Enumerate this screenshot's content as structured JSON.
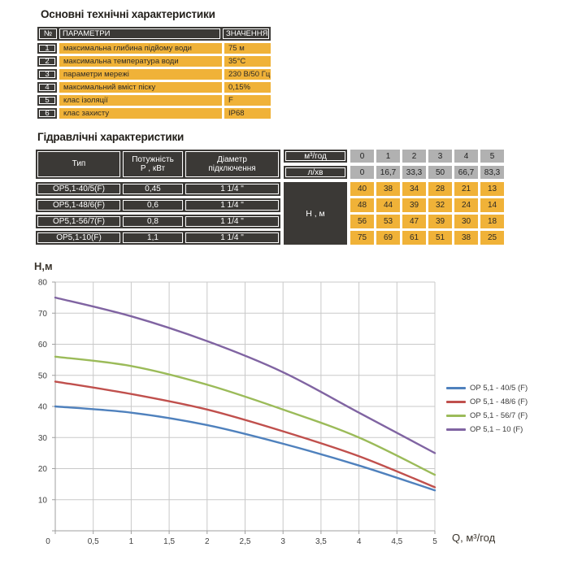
{
  "colors": {
    "dark": "#3b3936",
    "yellow": "#f0b238",
    "gray": "#b1b1b1",
    "series_blue": "#4f81bd",
    "series_red": "#c0504d",
    "series_green": "#9bbb59",
    "series_purple": "#8064a2"
  },
  "tech_table": {
    "title": "Основні технічні характеристики",
    "headers": {
      "num": "№",
      "param": "ПАРАМЕТРИ",
      "value": "ЗНАЧЕННЯ"
    },
    "rows": [
      {
        "num": "1",
        "param": "максимальна глибина підйому води",
        "value": "75 м"
      },
      {
        "num": "2",
        "param": "максимальна температура води",
        "value": "35°С"
      },
      {
        "num": "3",
        "param": "параметри мережі",
        "value": "230 В/50 Гц"
      },
      {
        "num": "4",
        "param": "максимальний вміст піску",
        "value": "0,15%"
      },
      {
        "num": "5",
        "param": "клас ізоляції",
        "value": "F"
      },
      {
        "num": "6",
        "param": "клас захисту",
        "value": "IP68"
      }
    ]
  },
  "hydraulic_table": {
    "title": "Гідравлічні характеристики",
    "col_headers": {
      "type": "Тип",
      "power": "Потужність\nР , кВт",
      "diameter": "Діаметр\nпідключення"
    },
    "flow_m3": {
      "label": "м³/год",
      "values": [
        "0",
        "1",
        "2",
        "3",
        "4",
        "5"
      ]
    },
    "flow_lmin": {
      "label": "л/хв",
      "values": [
        "0",
        "16,7",
        "33,3",
        "50",
        "66,7",
        "83,3"
      ]
    },
    "head_label": "Н , м",
    "rows": [
      {
        "type": "OP5,1-40/5(F)",
        "power": "0,45",
        "diameter": "1 1/4 \"",
        "heads": [
          "40",
          "38",
          "34",
          "28",
          "21",
          "13"
        ]
      },
      {
        "type": "OP5,1-48/6(F)",
        "power": "0,6",
        "diameter": "1 1/4 \"",
        "heads": [
          "48",
          "44",
          "39",
          "32",
          "24",
          "14"
        ]
      },
      {
        "type": "OP5,1-56/7(F)",
        "power": "0,8",
        "diameter": "1 1/4 \"",
        "heads": [
          "56",
          "53",
          "47",
          "39",
          "30",
          "18"
        ]
      },
      {
        "type": "OP5,1-10(F)",
        "power": "1,1",
        "diameter": "1 1/4 \"",
        "heads": [
          "75",
          "69",
          "61",
          "51",
          "38",
          "25"
        ]
      }
    ]
  },
  "chart_data": {
    "type": "line",
    "title": "",
    "ylabel": "Н,м",
    "xlabel": "Q, м³/год",
    "x": [
      0,
      1,
      2,
      3,
      4,
      5
    ],
    "xlim": [
      0,
      5
    ],
    "ylim": [
      0,
      80
    ],
    "x_grid_step": 0.5,
    "y_grid_step": 10,
    "grid": true,
    "legend_position": "right",
    "x_ticks": [
      "0",
      "0,5",
      "1",
      "1,5",
      "2",
      "2,5",
      "3",
      "3,5",
      "4",
      "4,5",
      "5"
    ],
    "y_ticks": [
      10,
      20,
      30,
      40,
      50,
      60,
      70,
      80
    ],
    "series": [
      {
        "name": "OP 5,1 - 40/5 (F)",
        "color": "#4f81bd",
        "values": [
          40,
          38,
          34,
          28,
          21,
          13
        ]
      },
      {
        "name": "OP 5,1 - 48/6 (F)",
        "color": "#c0504d",
        "values": [
          48,
          44,
          39,
          32,
          24,
          14
        ]
      },
      {
        "name": "OP 5,1 - 56/7 (F)",
        "color": "#9bbb59",
        "values": [
          56,
          53,
          47,
          39,
          30,
          18
        ]
      },
      {
        "name": "OP 5,1 – 10 (F)",
        "color": "#8064a2",
        "values": [
          75,
          69,
          61,
          51,
          38,
          25
        ]
      }
    ]
  }
}
